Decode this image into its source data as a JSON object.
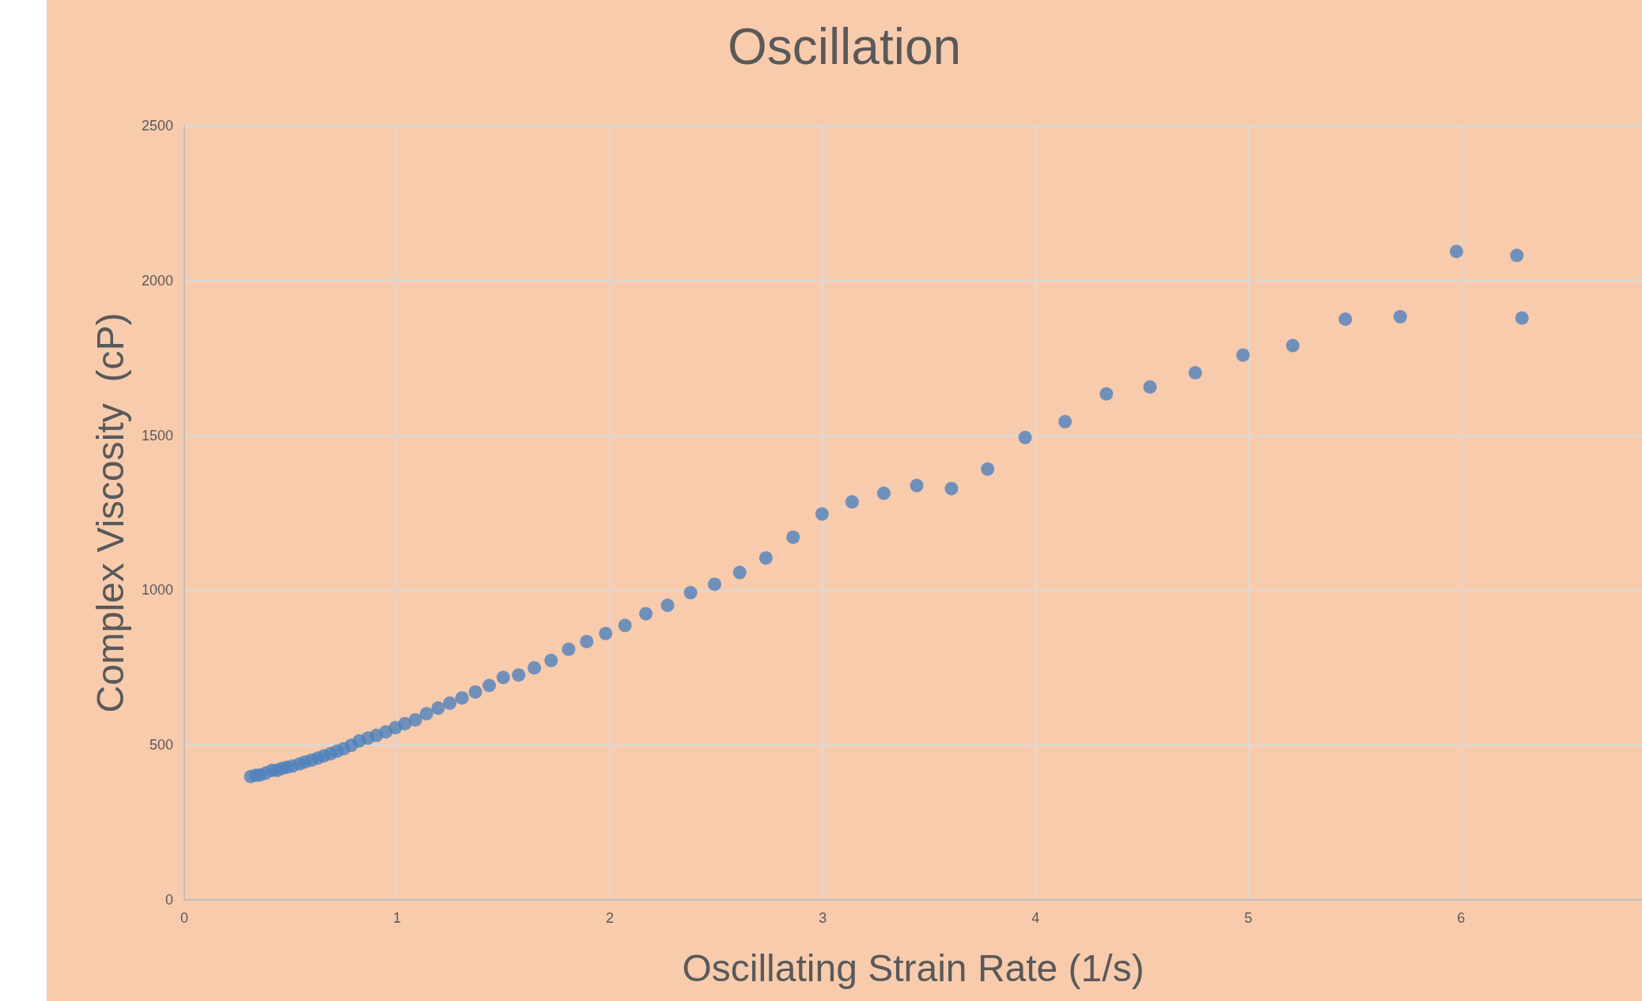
{
  "chart_data": {
    "type": "scatter",
    "title": "Oscillation",
    "xlabel": "Oscillating Strain Rate (1/s)",
    "ylabel": "Complex Viscosity  (cP)",
    "x": [
      0.312,
      0.336,
      0.356,
      0.382,
      0.412,
      0.436,
      0.459,
      0.482,
      0.509,
      0.542,
      0.568,
      0.598,
      0.628,
      0.657,
      0.688,
      0.718,
      0.75,
      0.785,
      0.822,
      0.863,
      0.903,
      0.947,
      0.992,
      1.037,
      1.086,
      1.138,
      1.193,
      1.248,
      1.305,
      1.368,
      1.433,
      1.499,
      1.571,
      1.645,
      1.724,
      1.806,
      1.891,
      1.98,
      2.071,
      2.169,
      2.271,
      2.379,
      2.492,
      2.61,
      2.733,
      2.861,
      2.997,
      3.138,
      3.287,
      3.442,
      3.605,
      3.775,
      3.951,
      4.139,
      4.333,
      4.538,
      4.751,
      4.975,
      5.209,
      5.456,
      5.714,
      5.978,
      6.262,
      6.286
    ],
    "series": [
      {
        "color": "#4e81bd",
        "values": [
          398,
          402,
          403,
          409,
          418,
          418,
          424,
          428,
          432,
          439,
          445,
          451,
          458,
          465,
          472,
          480,
          488,
          499,
          513,
          522,
          531,
          542,
          556,
          569,
          581,
          601,
          619,
          635,
          652,
          671,
          692,
          718,
          726,
          749,
          773,
          809,
          834,
          860,
          886,
          924,
          951,
          992,
          1019,
          1057,
          1104,
          1171,
          1246,
          1285,
          1313,
          1338,
          1328,
          1391,
          1493,
          1544,
          1634,
          1656,
          1702,
          1759,
          1790,
          1875,
          1883,
          2094,
          2081,
          1879
        ]
      }
    ],
    "xlim": [
      0,
      6.85
    ],
    "xticks": [
      0,
      1,
      2,
      3,
      4,
      5,
      6
    ],
    "ylim": [
      0,
      2500
    ],
    "yticks": [
      0,
      500,
      1000,
      1500,
      2000,
      2500
    ],
    "grid": true,
    "marker": "circle"
  }
}
